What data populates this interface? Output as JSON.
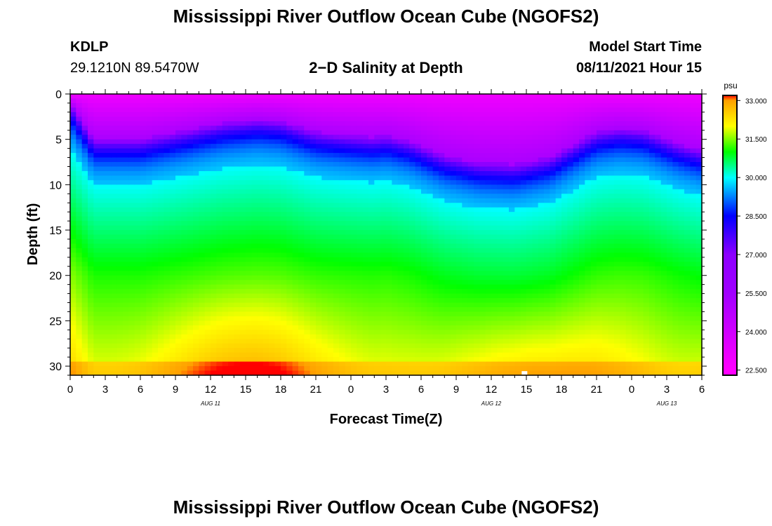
{
  "header": {
    "title": "Mississippi River Outflow Ocean Cube (NGOFS2)",
    "station_id": "KDLP",
    "station_coords": "29.1210N  89.5470W",
    "subtitle": "2−D Salinity at Depth",
    "model_label": "Model Start Time",
    "model_time": "08/11/2021 Hour 15"
  },
  "footer": {
    "title": "Mississippi River Outflow Ocean Cube (NGOFS2)"
  },
  "chart_data": {
    "type": "heatmap",
    "title": "2−D Salinity at Depth",
    "xlabel": "Forecast Time(Z)",
    "ylabel": "Depth (ft)",
    "x_tick_labels": [
      "0",
      "3",
      "6",
      "9",
      "12",
      "15",
      "18",
      "21",
      "0",
      "3",
      "6",
      "9",
      "12",
      "15",
      "18",
      "21",
      "0",
      "3",
      "6"
    ],
    "x_range_hours": [
      0,
      54
    ],
    "date_labels": [
      {
        "label": "AUG  11",
        "hour": 15
      },
      {
        "label": "AUG  12",
        "hour": 39
      },
      {
        "label": "AUG  13",
        "hour": 63
      }
    ],
    "y_tick_labels": [
      "0",
      "5",
      "10",
      "15",
      "20",
      "25",
      "30"
    ],
    "ylim": [
      31,
      0
    ],
    "colorbar": {
      "unit": "psu",
      "tick_labels": [
        "33.000",
        "31.500",
        "30.000",
        "28.500",
        "27.000",
        "25.500",
        "24.000",
        "22.500"
      ],
      "range": [
        22.3,
        33.2
      ],
      "colors": [
        "#ff00ff",
        "#a000ff",
        "#8c00ff",
        "#0000ff",
        "#00ffff",
        "#00ff00",
        "#ffff00",
        "#ffa000",
        "#ff0000"
      ],
      "color_stops": [
        22.5,
        25.5,
        27.0,
        28.5,
        30.0,
        31.0,
        32.0,
        33.0,
        33.3
      ]
    },
    "grid": false,
    "values_description_units": "psu",
    "halocline_depth_ft": [
      [
        0,
        1.0
      ],
      [
        2,
        5.0
      ],
      [
        6,
        5.0
      ],
      [
        10,
        4.0
      ],
      [
        13,
        3.2
      ],
      [
        16,
        2.8
      ],
      [
        18,
        3.0
      ],
      [
        21,
        4.2
      ],
      [
        24,
        4.6
      ],
      [
        26,
        4.8
      ],
      [
        27,
        4.6
      ],
      [
        29,
        5.2
      ],
      [
        32,
        6.8
      ],
      [
        35,
        7.6
      ],
      [
        38,
        7.8
      ],
      [
        41,
        7.0
      ],
      [
        43,
        5.6
      ],
      [
        45,
        4.2
      ],
      [
        47,
        3.8
      ],
      [
        49,
        4.0
      ],
      [
        52,
        5.5
      ],
      [
        54,
        6.2
      ]
    ]
  }
}
